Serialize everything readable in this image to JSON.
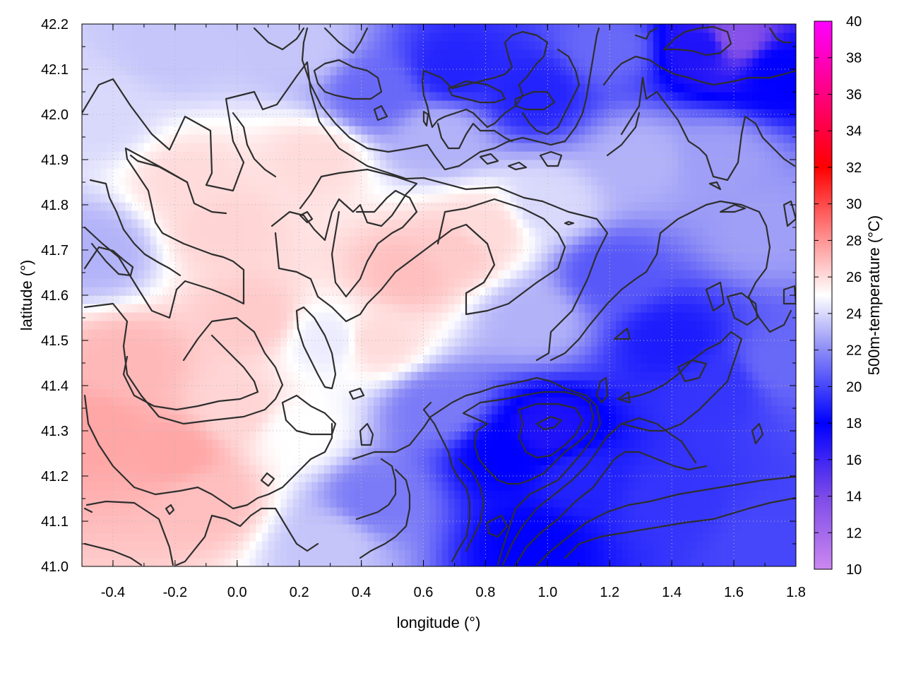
{
  "chart_data": {
    "type": "heatmap",
    "xlabel": "longitude (°)",
    "ylabel": "latitude (°)",
    "colorbar_label": "500m-temperature (°C)",
    "xlim": [
      -0.5,
      1.8
    ],
    "ylim": [
      41.0,
      42.2
    ],
    "clim": [
      10,
      40
    ],
    "x_ticks": [
      "-0.4",
      "-0.2",
      "0.0",
      "0.2",
      "0.4",
      "0.6",
      "0.8",
      "1.0",
      "1.2",
      "1.4",
      "1.6",
      "1.8"
    ],
    "x_tick_values": [
      -0.4,
      -0.2,
      0.0,
      0.2,
      0.4,
      0.6,
      0.8,
      1.0,
      1.2,
      1.4,
      1.6,
      1.8
    ],
    "y_ticks": [
      "41.0",
      "41.1",
      "41.2",
      "41.3",
      "41.4",
      "41.5",
      "41.6",
      "41.7",
      "41.8",
      "41.9",
      "42.0",
      "42.1",
      "42.2"
    ],
    "y_tick_values": [
      41.0,
      41.1,
      41.2,
      41.3,
      41.4,
      41.5,
      41.6,
      41.7,
      41.8,
      41.9,
      42.0,
      42.1,
      42.2
    ],
    "colorbar_ticks": [
      "10",
      "12",
      "14",
      "16",
      "18",
      "20",
      "22",
      "24",
      "26",
      "28",
      "30",
      "32",
      "34",
      "36",
      "38",
      "40"
    ],
    "colorbar_tick_values": [
      10,
      12,
      14,
      16,
      18,
      20,
      22,
      24,
      26,
      28,
      30,
      32,
      34,
      36,
      38,
      40
    ],
    "colormap": [
      {
        "value": 10,
        "color": "#cc88f0"
      },
      {
        "value": 14,
        "color": "#7c4ae8"
      },
      {
        "value": 18,
        "color": "#0000ff"
      },
      {
        "value": 22,
        "color": "#8c8cf6"
      },
      {
        "value": 25,
        "color": "#ffffff"
      },
      {
        "value": 28,
        "color": "#ff9494"
      },
      {
        "value": 32,
        "color": "#ff0000"
      },
      {
        "value": 40,
        "color": "#ff00ff"
      }
    ],
    "field_samples": [
      {
        "x": -0.45,
        "y": 41.3,
        "v": 27.5
      },
      {
        "x": -0.35,
        "y": 41.45,
        "v": 27.0
      },
      {
        "x": -0.2,
        "y": 41.25,
        "v": 27.5
      },
      {
        "x": -0.1,
        "y": 41.15,
        "v": 26.8
      },
      {
        "x": 0.0,
        "y": 41.35,
        "v": 26.2
      },
      {
        "x": 0.05,
        "y": 41.55,
        "v": 26.5
      },
      {
        "x": -0.05,
        "y": 41.75,
        "v": 26.2
      },
      {
        "x": -0.15,
        "y": 41.85,
        "v": 26.0
      },
      {
        "x": 0.25,
        "y": 41.9,
        "v": 26.0
      },
      {
        "x": 0.55,
        "y": 41.65,
        "v": 26.8
      },
      {
        "x": 0.7,
        "y": 41.7,
        "v": 26.5
      },
      {
        "x": 0.45,
        "y": 41.5,
        "v": 26.0
      },
      {
        "x": 0.8,
        "y": 41.75,
        "v": 26.0
      },
      {
        "x": -0.45,
        "y": 41.7,
        "v": 23.0
      },
      {
        "x": -0.45,
        "y": 42.0,
        "v": 24.0
      },
      {
        "x": -0.2,
        "y": 42.15,
        "v": 23.5
      },
      {
        "x": 0.2,
        "y": 42.15,
        "v": 23.5
      },
      {
        "x": 0.45,
        "y": 42.05,
        "v": 21.0
      },
      {
        "x": 0.7,
        "y": 42.1,
        "v": 19.0
      },
      {
        "x": 0.95,
        "y": 42.05,
        "v": 19.0
      },
      {
        "x": 1.2,
        "y": 42.15,
        "v": 21.0
      },
      {
        "x": 1.5,
        "y": 42.15,
        "v": 17.0
      },
      {
        "x": 1.6,
        "y": 42.17,
        "v": 13.5
      },
      {
        "x": 1.75,
        "y": 42.1,
        "v": 18.0
      },
      {
        "x": 1.3,
        "y": 41.9,
        "v": 23.0
      },
      {
        "x": 1.55,
        "y": 41.9,
        "v": 22.5
      },
      {
        "x": 1.7,
        "y": 41.75,
        "v": 22.5
      },
      {
        "x": 1.2,
        "y": 41.65,
        "v": 20.5
      },
      {
        "x": 1.4,
        "y": 41.5,
        "v": 18.8
      },
      {
        "x": 1.55,
        "y": 41.4,
        "v": 19.5
      },
      {
        "x": 1.75,
        "y": 41.45,
        "v": 21.0
      },
      {
        "x": 1.0,
        "y": 41.3,
        "v": 17.0
      },
      {
        "x": 0.85,
        "y": 41.25,
        "v": 18.0
      },
      {
        "x": 1.1,
        "y": 41.2,
        "v": 19.0
      },
      {
        "x": 1.4,
        "y": 41.15,
        "v": 19.5
      },
      {
        "x": 1.7,
        "y": 41.05,
        "v": 20.0
      },
      {
        "x": 0.95,
        "y": 41.05,
        "v": 18.0
      },
      {
        "x": 0.65,
        "y": 41.35,
        "v": 21.5
      },
      {
        "x": 0.45,
        "y": 41.15,
        "v": 21.5
      },
      {
        "x": 0.3,
        "y": 41.05,
        "v": 23.5
      },
      {
        "x": 0.2,
        "y": 41.3,
        "v": 25.0
      },
      {
        "x": 0.3,
        "y": 41.5,
        "v": 24.5
      },
      {
        "x": 0.95,
        "y": 41.55,
        "v": 23.0
      },
      {
        "x": 1.0,
        "y": 41.8,
        "v": 24.0
      },
      {
        "x": 0.65,
        "y": 41.95,
        "v": 23.0
      }
    ]
  }
}
